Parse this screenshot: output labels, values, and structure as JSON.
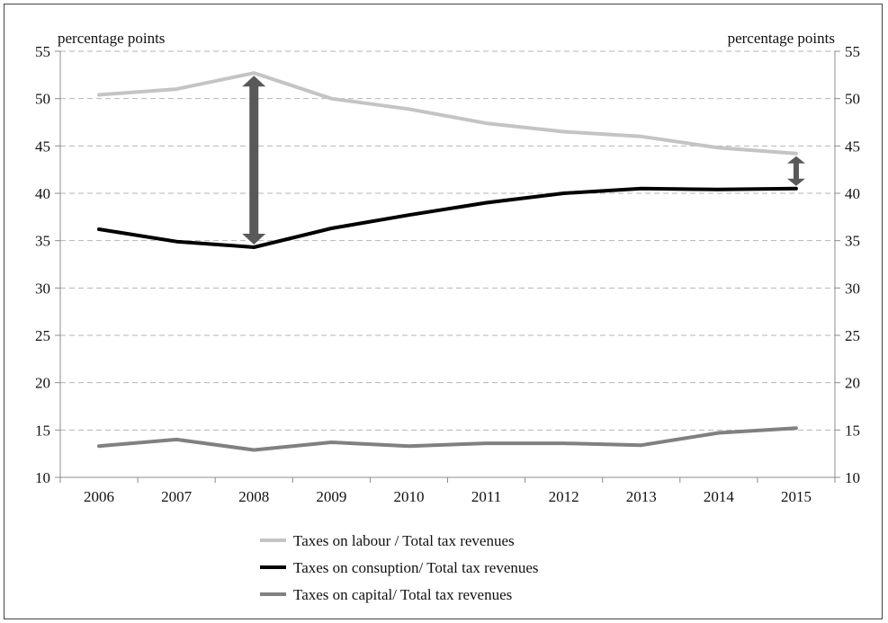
{
  "chart_data": {
    "type": "line",
    "categories": [
      "2006",
      "2007",
      "2008",
      "2009",
      "2010",
      "2011",
      "2012",
      "2013",
      "2014",
      "2015"
    ],
    "ylim": [
      10,
      55
    ],
    "yticks": [
      10,
      15,
      20,
      25,
      30,
      35,
      40,
      45,
      50,
      55
    ],
    "y_left_unit": "percentage points",
    "y_right_unit": "percentage points",
    "grid": "horizontal dashed",
    "legend_position": "bottom",
    "series": [
      {
        "name": "Taxes on labour / Total tax revenues",
        "color": "#c4c4c4",
        "values": [
          50.4,
          51.0,
          52.7,
          50.0,
          48.9,
          47.4,
          46.5,
          46.0,
          44.8,
          44.2
        ]
      },
      {
        "name": "Taxes on consuption/ Total tax revenues",
        "color": "#000000",
        "values": [
          36.2,
          34.9,
          34.3,
          36.3,
          37.7,
          39.0,
          40.0,
          40.5,
          40.4,
          40.5
        ]
      },
      {
        "name": "Taxes on capital/ Total tax revenues",
        "color": "#808080",
        "values": [
          13.3,
          14.0,
          12.9,
          13.7,
          13.3,
          13.6,
          13.6,
          13.4,
          14.7,
          15.2
        ]
      }
    ],
    "annotations": [
      {
        "type": "double-arrow",
        "x": "2008",
        "from": 34.3,
        "to": 52.7,
        "color": "#595959"
      },
      {
        "type": "double-arrow",
        "x": "2015",
        "from": 40.5,
        "to": 44.2,
        "color": "#595959"
      }
    ]
  }
}
